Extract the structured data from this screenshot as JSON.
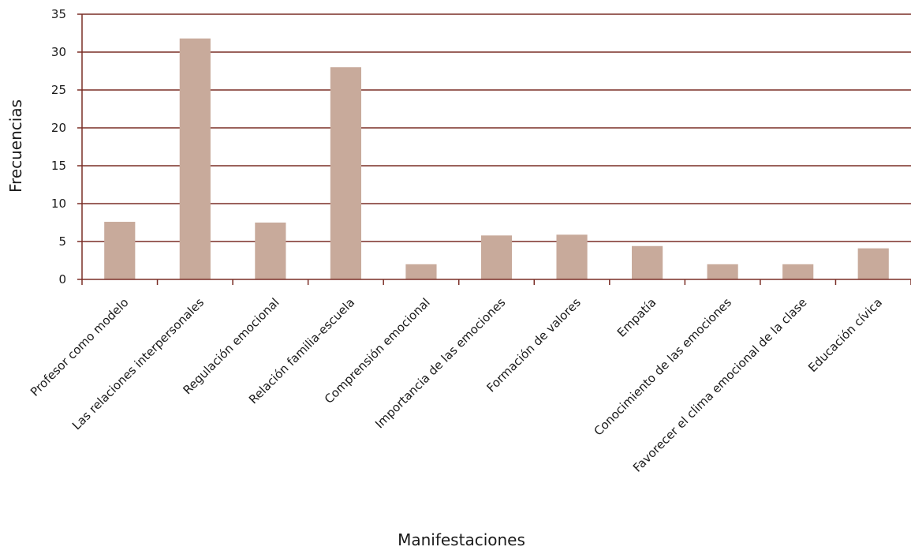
{
  "chart_data": {
    "type": "bar",
    "title": "",
    "xlabel": "Manifestaciones",
    "ylabel": "Frecuencias",
    "ylim": [
      0,
      35
    ],
    "yticks": [
      0,
      5,
      10,
      15,
      20,
      25,
      30,
      35
    ],
    "grid": true,
    "legend": "none",
    "categories": [
      "Profesor como modelo",
      "Las relaciones interpersonales",
      "Regulación emocional",
      "Relación familia-escuela",
      "Comprensión emocional",
      "Importancia de las emociones",
      "Formación de valores",
      "Empatía",
      "Conocimiento de las emociones",
      "Favorecer el clima emocional de la clase",
      "Educación cívica"
    ],
    "values": [
      7.6,
      31.8,
      7.5,
      28,
      2,
      5.8,
      5.9,
      4.4,
      2,
      2,
      4.1
    ],
    "colors": {
      "bar": "#c8aa9b",
      "grid": "#7a2e26",
      "axis": "#7a2e26",
      "text": "#1a1a1a"
    }
  }
}
